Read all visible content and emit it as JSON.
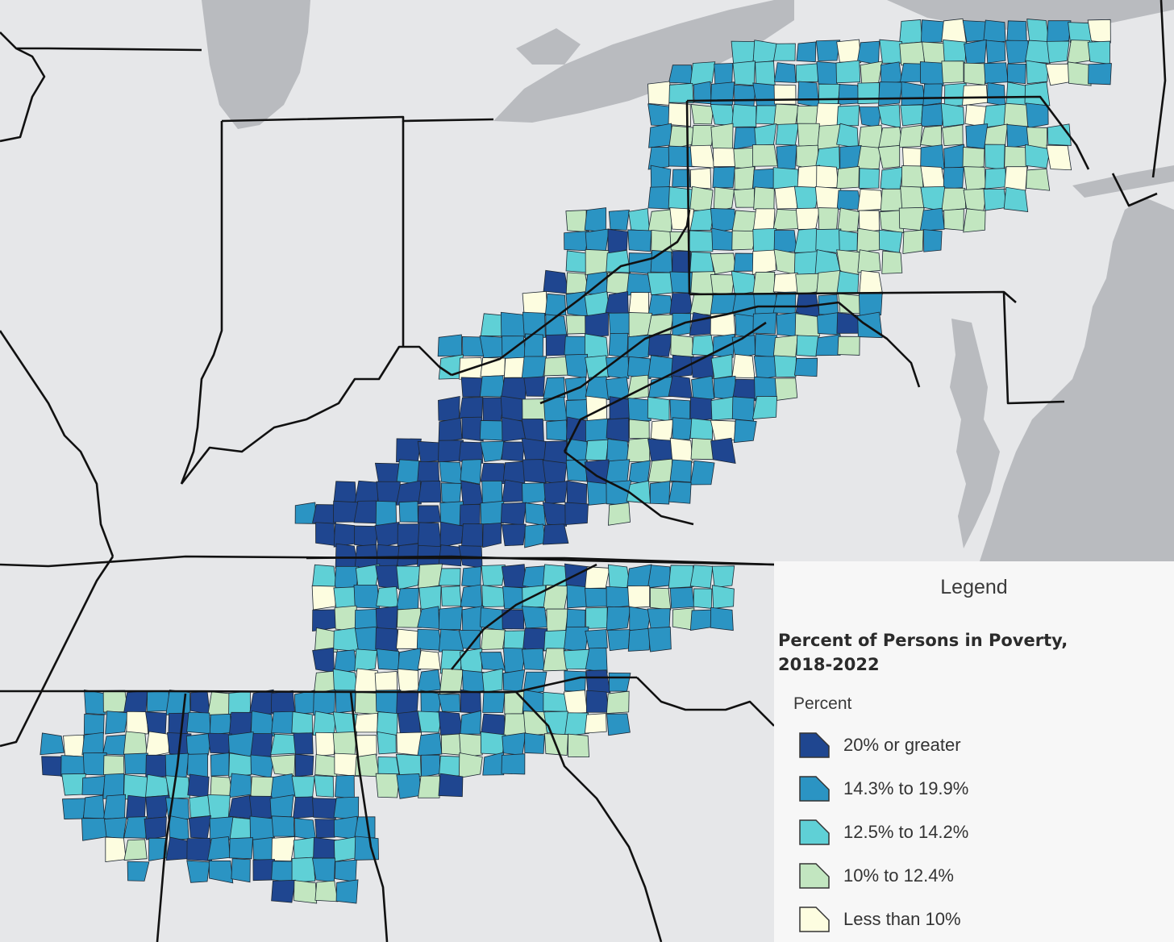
{
  "legend": {
    "title": "Legend",
    "subtitle": "Percent of Persons in Poverty, 2018-2022",
    "field_label": "Percent",
    "classes": [
      {
        "label": "20% or greater",
        "color": "#1f4690"
      },
      {
        "label": "14.3% to 19.9%",
        "color": "#2b94c3"
      },
      {
        "label": "12.5% to 14.2%",
        "color": "#5fd0d6"
      },
      {
        "label": "10% to 12.4%",
        "color": "#c2e6c0"
      },
      {
        "label": "Less than 10%",
        "color": "#fdfde0"
      }
    ]
  },
  "colors": {
    "land": "#e6e7e9",
    "water": "#b9bbbf",
    "state_border": "#111111",
    "county_border": "#1d2733"
  }
}
